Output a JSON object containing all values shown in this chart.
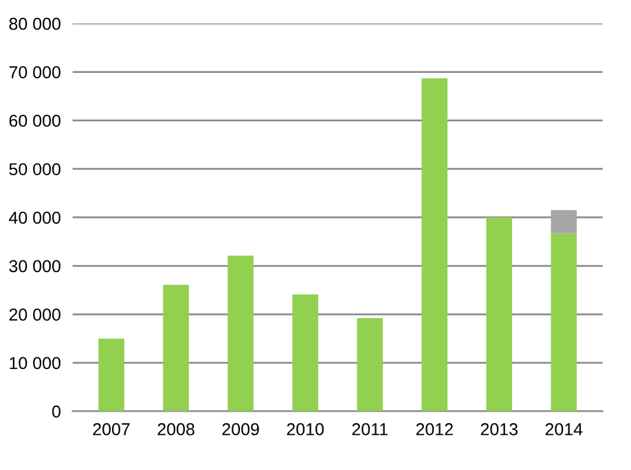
{
  "chart_data": {
    "type": "bar",
    "stacked": true,
    "categories": [
      "2007",
      "2008",
      "2009",
      "2010",
      "2011",
      "2012",
      "2013",
      "2014"
    ],
    "series": [
      {
        "color": "#92d050",
        "values": [
          15000,
          26100,
          32100,
          24100,
          19200,
          68700,
          40000,
          36700
        ]
      },
      {
        "color": "#a6a6a6",
        "values": [
          null,
          null,
          null,
          null,
          null,
          null,
          null,
          4800
        ]
      }
    ],
    "ylim": [
      0,
      80000
    ],
    "yticks": [
      {
        "value": 0,
        "label": "0"
      },
      {
        "value": 10000,
        "label": "10 000"
      },
      {
        "value": 20000,
        "label": "20 000"
      },
      {
        "value": 30000,
        "label": "30 000"
      },
      {
        "value": 40000,
        "label": "40 000"
      },
      {
        "value": 50000,
        "label": "50 000"
      },
      {
        "value": 60000,
        "label": "60 000"
      },
      {
        "value": 70000,
        "label": "70 000"
      },
      {
        "value": 80000,
        "label": "80 000"
      }
    ],
    "grid": "y"
  }
}
